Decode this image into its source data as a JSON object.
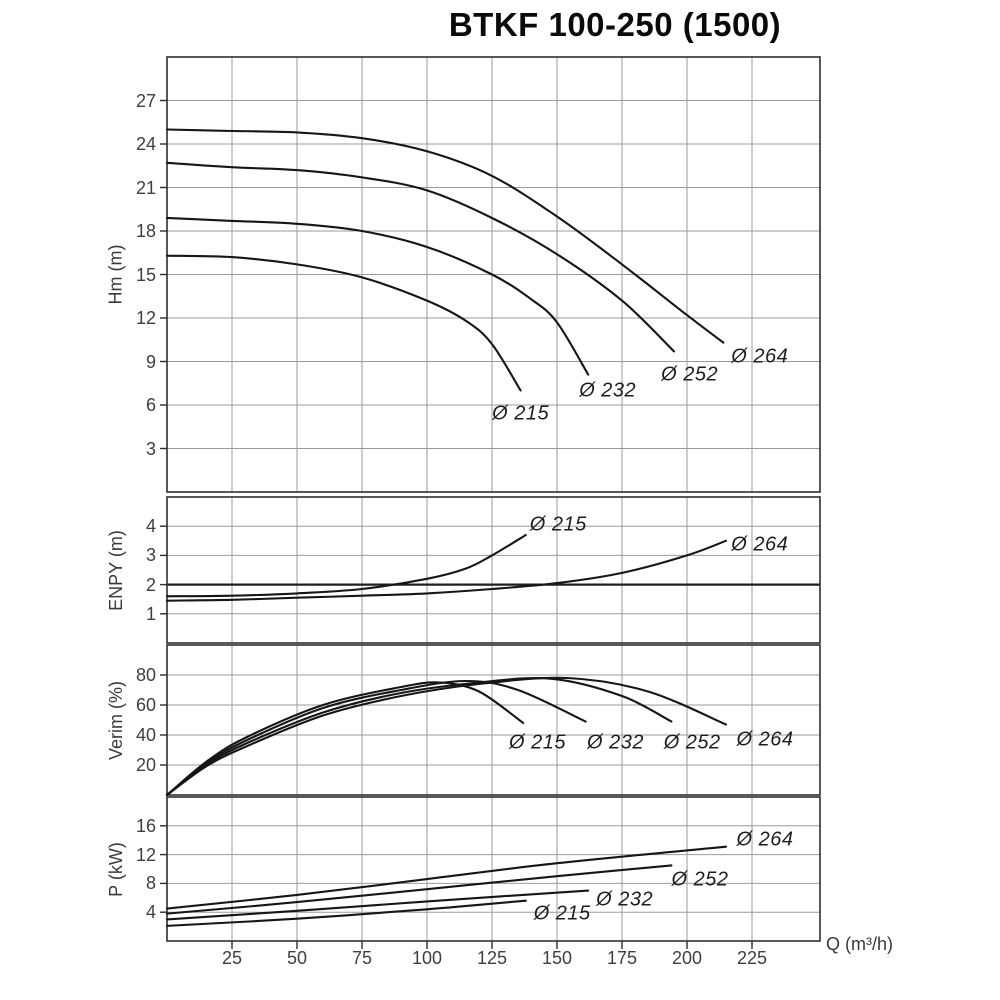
{
  "title": "BTKF 100-250 (1500)",
  "x_axis": {
    "label": "Q (m³/h)",
    "ticks": [
      25,
      50,
      75,
      100,
      125,
      150,
      175,
      200,
      225
    ],
    "min": 0,
    "max": 251
  },
  "colors": {
    "curve": "#161616",
    "grid": "#9b9b9b",
    "border": "#2e2e2e",
    "bold_grid": "#1f1f1f",
    "text": "#3f3f3f",
    "title": "#0a0a0a"
  },
  "chart_data": [
    {
      "type": "line",
      "id": "head",
      "ylabel": "Hm (m)",
      "ymin": 0,
      "ymax": 30,
      "yticks": [
        3,
        6,
        9,
        12,
        15,
        18,
        21,
        24,
        27
      ],
      "xlabel": "Q (m³/h)",
      "grid": true,
      "series": [
        {
          "name": "Ø 264",
          "x": [
            0,
            25,
            50,
            75,
            100,
            125,
            150,
            175,
            200,
            214
          ],
          "y": [
            25.0,
            24.9,
            24.8,
            24.4,
            23.5,
            21.8,
            19.0,
            15.7,
            12.2,
            10.3
          ],
          "label": {
            "x": 228,
            "y": 9.3
          }
        },
        {
          "name": "Ø 252",
          "x": [
            0,
            25,
            50,
            75,
            100,
            125,
            150,
            175,
            195
          ],
          "y": [
            22.7,
            22.4,
            22.2,
            21.7,
            20.8,
            18.9,
            16.4,
            13.2,
            9.7
          ],
          "label": {
            "x": 201,
            "y": 8.1
          }
        },
        {
          "name": "Ø 232",
          "x": [
            0,
            25,
            50,
            75,
            100,
            125,
            140,
            150,
            162
          ],
          "y": [
            18.9,
            18.7,
            18.5,
            18.0,
            16.9,
            15.0,
            13.3,
            11.7,
            8.1
          ],
          "label": {
            "x": 169.5,
            "y": 7.0
          }
        },
        {
          "name": "Ø 215",
          "x": [
            0,
            25,
            50,
            75,
            100,
            115,
            125,
            136
          ],
          "y": [
            16.3,
            16.2,
            15.7,
            14.8,
            13.2,
            11.8,
            10.2,
            7.0
          ],
          "label": {
            "x": 136,
            "y": 5.4
          }
        }
      ]
    },
    {
      "type": "line",
      "id": "npsh",
      "ylabel": "ENPY (m)",
      "ymin": 0,
      "ymax": 5,
      "yticks": [
        1,
        2,
        3,
        4
      ],
      "bold_y": 2,
      "grid": true,
      "series": [
        {
          "name": "Ø 215",
          "x": [
            0,
            25,
            50,
            75,
            100,
            115,
            125,
            138
          ],
          "y": [
            1.6,
            1.62,
            1.7,
            1.85,
            2.2,
            2.55,
            3.0,
            3.7
          ],
          "label": {
            "x": 150.5,
            "y": 4.05
          }
        },
        {
          "name": "Ø 264",
          "x": [
            0,
            25,
            50,
            75,
            100,
            125,
            150,
            175,
            200,
            215
          ],
          "y": [
            1.45,
            1.48,
            1.55,
            1.62,
            1.7,
            1.85,
            2.05,
            2.4,
            3.0,
            3.5
          ],
          "label": {
            "x": 228,
            "y": 3.35
          }
        }
      ]
    },
    {
      "type": "line",
      "id": "efficiency",
      "ylabel": "Verim (%)",
      "ymin": 0,
      "ymax": 100,
      "yticks": [
        20,
        40,
        60,
        80
      ],
      "grid": true,
      "series": [
        {
          "name": "Ø 264",
          "x": [
            0,
            15,
            30,
            60,
            90,
            120,
            154,
            185,
            215
          ],
          "y": [
            0,
            19,
            32,
            53,
            66,
            74,
            78,
            69,
            47
          ],
          "label": {
            "x": 230,
            "y": 37
          }
        },
        {
          "name": "Ø 252",
          "x": [
            0,
            15,
            30,
            60,
            90,
            120,
            148,
            175,
            194
          ],
          "y": [
            0,
            20,
            34,
            55,
            68,
            75,
            77.5,
            66,
            49
          ],
          "label": {
            "x": 202,
            "y": 34.5
          }
        },
        {
          "name": "Ø 232",
          "x": [
            0,
            15,
            30,
            60,
            90,
            115,
            135,
            161
          ],
          "y": [
            0,
            21,
            36,
            58,
            70,
            76,
            70,
            49
          ],
          "label": {
            "x": 172.5,
            "y": 34.5
          }
        },
        {
          "name": "Ø 215",
          "x": [
            0,
            15,
            30,
            60,
            90,
            105,
            120,
            137
          ],
          "y": [
            0,
            22,
            38,
            60,
            72,
            75,
            69,
            48
          ],
          "label": {
            "x": 142.5,
            "y": 34.5
          }
        }
      ]
    },
    {
      "type": "line",
      "id": "power",
      "ylabel": "P (kW)",
      "ymin": 0,
      "ymax": 20,
      "yticks": [
        4,
        8,
        12,
        16
      ],
      "grid": true,
      "series": [
        {
          "name": "Ø 264",
          "x": [
            0,
            50,
            100,
            150,
            215
          ],
          "y": [
            4.5,
            6.4,
            8.6,
            10.8,
            13.1
          ],
          "label": {
            "x": 230,
            "y": 14.0
          }
        },
        {
          "name": "Ø 252",
          "x": [
            0,
            50,
            100,
            150,
            194
          ],
          "y": [
            3.8,
            5.4,
            7.2,
            9.0,
            10.5
          ],
          "label": {
            "x": 205,
            "y": 8.5
          }
        },
        {
          "name": "Ø 232",
          "x": [
            0,
            50,
            100,
            162
          ],
          "y": [
            3.0,
            4.2,
            5.5,
            7.0
          ],
          "label": {
            "x": 176,
            "y": 5.7
          }
        },
        {
          "name": "Ø 215",
          "x": [
            0,
            50,
            100,
            138
          ],
          "y": [
            2.1,
            3.1,
            4.4,
            5.6
          ],
          "label": {
            "x": 152,
            "y": 3.7
          }
        }
      ]
    }
  ]
}
